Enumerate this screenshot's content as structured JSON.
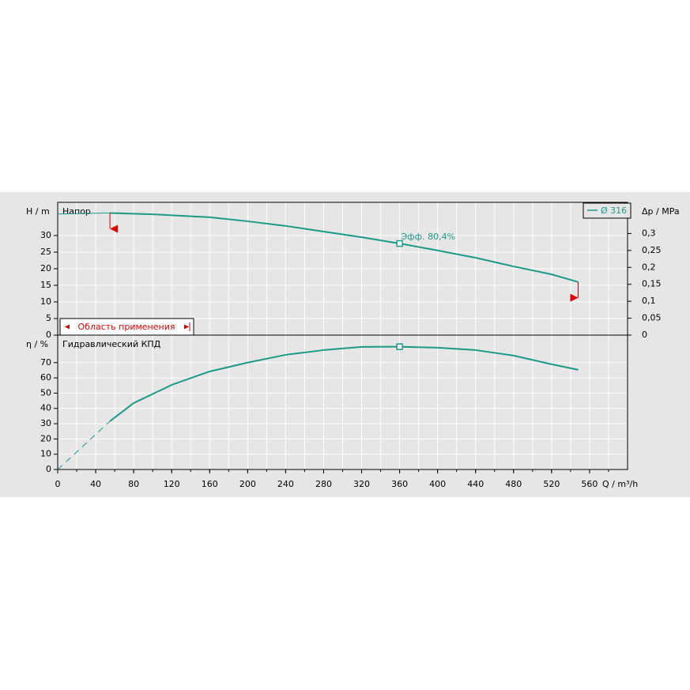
{
  "chart_data": [
    {
      "type": "line",
      "title": "Напор",
      "ylabel": "H / m",
      "y2label": "Δp / MPa",
      "x": [
        0,
        55,
        100,
        160,
        200,
        240,
        280,
        320,
        360,
        400,
        440,
        480,
        520,
        548
      ],
      "series": [
        {
          "name": "Ø 316",
          "color": "#1b9a87",
          "values": [
            36.5,
            36.8,
            36.4,
            35.5,
            34.3,
            32.9,
            31.2,
            29.5,
            27.6,
            25.5,
            23.3,
            20.7,
            18.3,
            16.0
          ]
        }
      ],
      "annotation": "Эфф.  80,4%",
      "annotation_x": 360,
      "range_label": "Область применения",
      "range": [
        55,
        548
      ],
      "range_color": "#e00000",
      "xlim": [
        0,
        600
      ],
      "xgrid": [
        20,
        40,
        60,
        80,
        100,
        120,
        140,
        160,
        180,
        200,
        220,
        240,
        260,
        280,
        300,
        320,
        340,
        360,
        380,
        400,
        420,
        440,
        460,
        480,
        500,
        520,
        540,
        560,
        580
      ],
      "ylim": [
        0,
        40
      ],
      "yticks": [
        0,
        5,
        10,
        15,
        20,
        25,
        30
      ],
      "y2lim": [
        0,
        0.392
      ],
      "y2ticks": [
        0,
        {
          "value": 0.05,
          "label": "0,05"
        },
        {
          "value": 0.1,
          "label": "0,1"
        },
        {
          "value": 0.15,
          "label": "0,15"
        },
        {
          "value": 0.2,
          "label": "0,2"
        },
        {
          "value": 0.25,
          "label": "0,25"
        },
        {
          "value": 0.3,
          "label": "0,3"
        }
      ],
      "grid": true,
      "legend": "upper right"
    },
    {
      "type": "line",
      "title": "Гидравлический КПД",
      "ylabel": "η / %",
      "xlabel": "Q / m³/h",
      "x": [
        0,
        55,
        80,
        120,
        160,
        200,
        240,
        280,
        320,
        360,
        400,
        440,
        480,
        520,
        548
      ],
      "series": [
        {
          "color": "#1b9a87",
          "values": [
            0,
            31.6,
            43.5,
            55.4,
            64.2,
            70,
            75.1,
            78.2,
            80.3,
            80.4,
            79.8,
            78.2,
            74.6,
            68.9,
            65.3
          ]
        }
      ],
      "marker_x": 360,
      "range": [
        55,
        548
      ],
      "xlim": [
        0,
        600
      ],
      "xticks": [
        0,
        40,
        80,
        120,
        160,
        200,
        240,
        280,
        320,
        360,
        400,
        440,
        480,
        520,
        560
      ],
      "xgrid": [
        20,
        40,
        60,
        80,
        100,
        120,
        140,
        160,
        180,
        200,
        220,
        240,
        260,
        280,
        300,
        320,
        340,
        360,
        380,
        400,
        420,
        440,
        460,
        480,
        500,
        520,
        540,
        560,
        580
      ],
      "ylim": [
        0,
        88
      ],
      "yticks": [
        0,
        10,
        20,
        30,
        40,
        50,
        60,
        70
      ],
      "grid": true
    }
  ]
}
